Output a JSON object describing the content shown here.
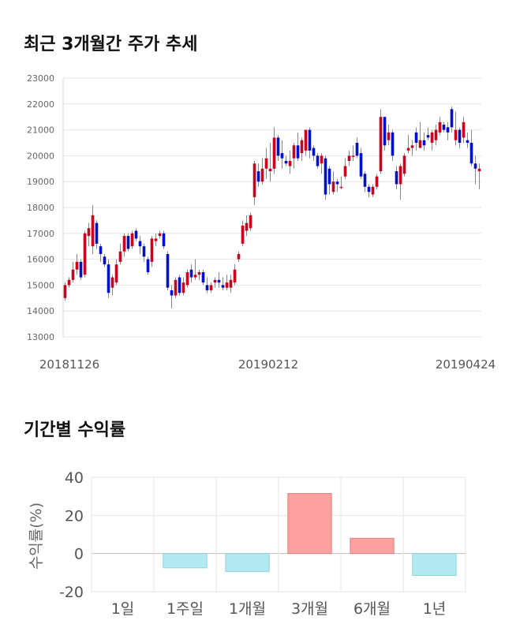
{
  "titles": {
    "price_trend": "최근 3개월간 주가 추세",
    "period_returns": "기간별 수익률"
  },
  "chart_data": [
    {
      "type": "candlestick",
      "ylim": [
        13000,
        23000
      ],
      "yticks": [
        13000,
        14000,
        15000,
        16000,
        17000,
        18000,
        19000,
        20000,
        21000,
        22000,
        23000
      ],
      "xtick_labels": [
        "20181126",
        "20190212",
        "20190424"
      ],
      "grid": true,
      "colors": {
        "up": "#d0021b",
        "down": "#0010d0"
      },
      "candles": [
        [
          14500,
          15000,
          14400,
          15100
        ],
        [
          15000,
          15200,
          14900,
          15300
        ],
        [
          15200,
          15600,
          15100,
          15900
        ],
        [
          15600,
          15900,
          15400,
          16200
        ],
        [
          15900,
          15300,
          15200,
          16000
        ],
        [
          15400,
          17000,
          15300,
          17100
        ],
        [
          16900,
          17200,
          16500,
          17400
        ],
        [
          16500,
          17700,
          16200,
          18100
        ],
        [
          17400,
          16600,
          16400,
          17500
        ],
        [
          16500,
          16200,
          15900,
          16600
        ],
        [
          16100,
          15800,
          15700,
          16200
        ],
        [
          15800,
          14700,
          14500,
          16000
        ],
        [
          14900,
          15300,
          14600,
          15400
        ],
        [
          15100,
          15800,
          15000,
          16000
        ],
        [
          15900,
          16300,
          15800,
          16600
        ],
        [
          16300,
          16900,
          16100,
          17000
        ],
        [
          16900,
          16400,
          16300,
          17000
        ],
        [
          16500,
          17000,
          16400,
          17100
        ],
        [
          17100,
          16800,
          16700,
          17200
        ],
        [
          16700,
          16500,
          16200,
          16900
        ],
        [
          16500,
          16100,
          15900,
          16600
        ],
        [
          16000,
          15500,
          15400,
          16100
        ],
        [
          15900,
          16800,
          15700,
          16900
        ],
        [
          16700,
          16800,
          16500,
          17000
        ],
        [
          16900,
          17000,
          16800,
          17100
        ],
        [
          17000,
          16500,
          16400,
          17100
        ],
        [
          16200,
          14900,
          14800,
          16300
        ],
        [
          14800,
          14600,
          14100,
          15000
        ],
        [
          14600,
          15200,
          14500,
          15300
        ],
        [
          15300,
          14700,
          14600,
          15400
        ],
        [
          14700,
          15100,
          14600,
          15300
        ],
        [
          15000,
          15500,
          14900,
          15600
        ],
        [
          15600,
          15300,
          15100,
          15800
        ],
        [
          15300,
          15400,
          15200,
          16000
        ],
        [
          15400,
          15500,
          15200,
          15600
        ],
        [
          15500,
          15100,
          15000,
          15600
        ],
        [
          15000,
          14800,
          14700,
          15300
        ],
        [
          14800,
          15000,
          14700,
          15100
        ],
        [
          15100,
          15200,
          14900,
          15300
        ],
        [
          15200,
          15100,
          14900,
          15500
        ],
        [
          15000,
          14900,
          14800,
          15300
        ],
        [
          14900,
          15100,
          14800,
          15400
        ],
        [
          14900,
          15200,
          14700,
          15400
        ],
        [
          15100,
          15600,
          15000,
          15800
        ],
        [
          16000,
          16200,
          15900,
          16300
        ],
        [
          16600,
          17300,
          16500,
          17500
        ],
        [
          17100,
          17400,
          16900,
          17700
        ],
        [
          17200,
          17700,
          17100,
          17800
        ],
        [
          18400,
          19700,
          18100,
          19800
        ],
        [
          19400,
          19000,
          18800,
          19700
        ],
        [
          19000,
          19500,
          18900,
          19900
        ],
        [
          19500,
          19900,
          19100,
          20300
        ],
        [
          19400,
          19500,
          19000,
          20500
        ],
        [
          19500,
          20700,
          19300,
          21100
        ],
        [
          20700,
          20000,
          19800,
          20800
        ],
        [
          20100,
          19900,
          19500,
          20600
        ],
        [
          19800,
          19700,
          19600,
          20000
        ],
        [
          19600,
          19800,
          19300,
          20200
        ],
        [
          19900,
          20400,
          19500,
          20500
        ],
        [
          20400,
          19900,
          19800,
          20900
        ],
        [
          20100,
          20600,
          19800,
          20700
        ],
        [
          20200,
          21000,
          20000,
          21000
        ],
        [
          21000,
          20200,
          19900,
          21100
        ],
        [
          20300,
          20000,
          19800,
          20400
        ],
        [
          20000,
          19600,
          19500,
          20100
        ],
        [
          19700,
          20000,
          19300,
          20100
        ],
        [
          19900,
          18500,
          18300,
          20000
        ],
        [
          19500,
          18900,
          18500,
          19600
        ],
        [
          18600,
          19000,
          18500,
          19400
        ],
        [
          19000,
          18900,
          18600,
          19100
        ],
        [
          18800,
          18800,
          18700,
          19200
        ],
        [
          19200,
          19600,
          19100,
          19900
        ],
        [
          19800,
          20000,
          19600,
          20200
        ],
        [
          20000,
          20000,
          19800,
          20400
        ],
        [
          20500,
          20000,
          19900,
          20700
        ],
        [
          20100,
          19200,
          19100,
          20300
        ],
        [
          19300,
          18800,
          18600,
          19400
        ],
        [
          18800,
          18600,
          18400,
          18900
        ],
        [
          18500,
          18800,
          18400,
          18900
        ],
        [
          18800,
          19200,
          18700,
          19300
        ],
        [
          19400,
          21500,
          19300,
          21800
        ],
        [
          21500,
          20400,
          20200,
          21500
        ],
        [
          20600,
          20900,
          20400,
          21200
        ],
        [
          20900,
          20000,
          19800,
          21000
        ],
        [
          19400,
          18900,
          18700,
          19600
        ],
        [
          18900,
          19600,
          18300,
          19700
        ],
        [
          19300,
          20000,
          19200,
          20100
        ],
        [
          20200,
          20300,
          20100,
          20800
        ],
        [
          20300,
          20400,
          20000,
          20600
        ],
        [
          20900,
          20500,
          20200,
          21100
        ],
        [
          20300,
          20600,
          20300,
          21300
        ],
        [
          20600,
          20400,
          20200,
          20900
        ],
        [
          20800,
          20700,
          20600,
          21100
        ],
        [
          20500,
          20900,
          20200,
          21000
        ],
        [
          20600,
          21000,
          20400,
          21200
        ],
        [
          20900,
          21300,
          20800,
          21500
        ],
        [
          21200,
          21000,
          20900,
          21300
        ],
        [
          21100,
          20900,
          20600,
          21300
        ],
        [
          21800,
          21100,
          20900,
          21900
        ],
        [
          20600,
          21000,
          20400,
          21700
        ],
        [
          21000,
          20500,
          20300,
          21100
        ],
        [
          20700,
          21300,
          20500,
          21500
        ],
        [
          20600,
          20500,
          20300,
          20900
        ],
        [
          20500,
          19700,
          19600,
          21000
        ],
        [
          19700,
          19500,
          18900,
          20000
        ],
        [
          19400,
          19500,
          18700,
          19700
        ]
      ]
    },
    {
      "type": "bar",
      "categories": [
        "1일",
        "1주일",
        "1개월",
        "3개월",
        "6개월",
        "1년"
      ],
      "values": [
        0,
        -7.5,
        -9.5,
        31.5,
        8,
        -11.5
      ],
      "ylim": [
        -20,
        40
      ],
      "yticks": [
        -20,
        0,
        20,
        40
      ],
      "ylabel": "수익률(%)",
      "grid": true,
      "colors": {
        "positive": "#ffa0a0",
        "negative": "#b3e9f2"
      }
    }
  ]
}
